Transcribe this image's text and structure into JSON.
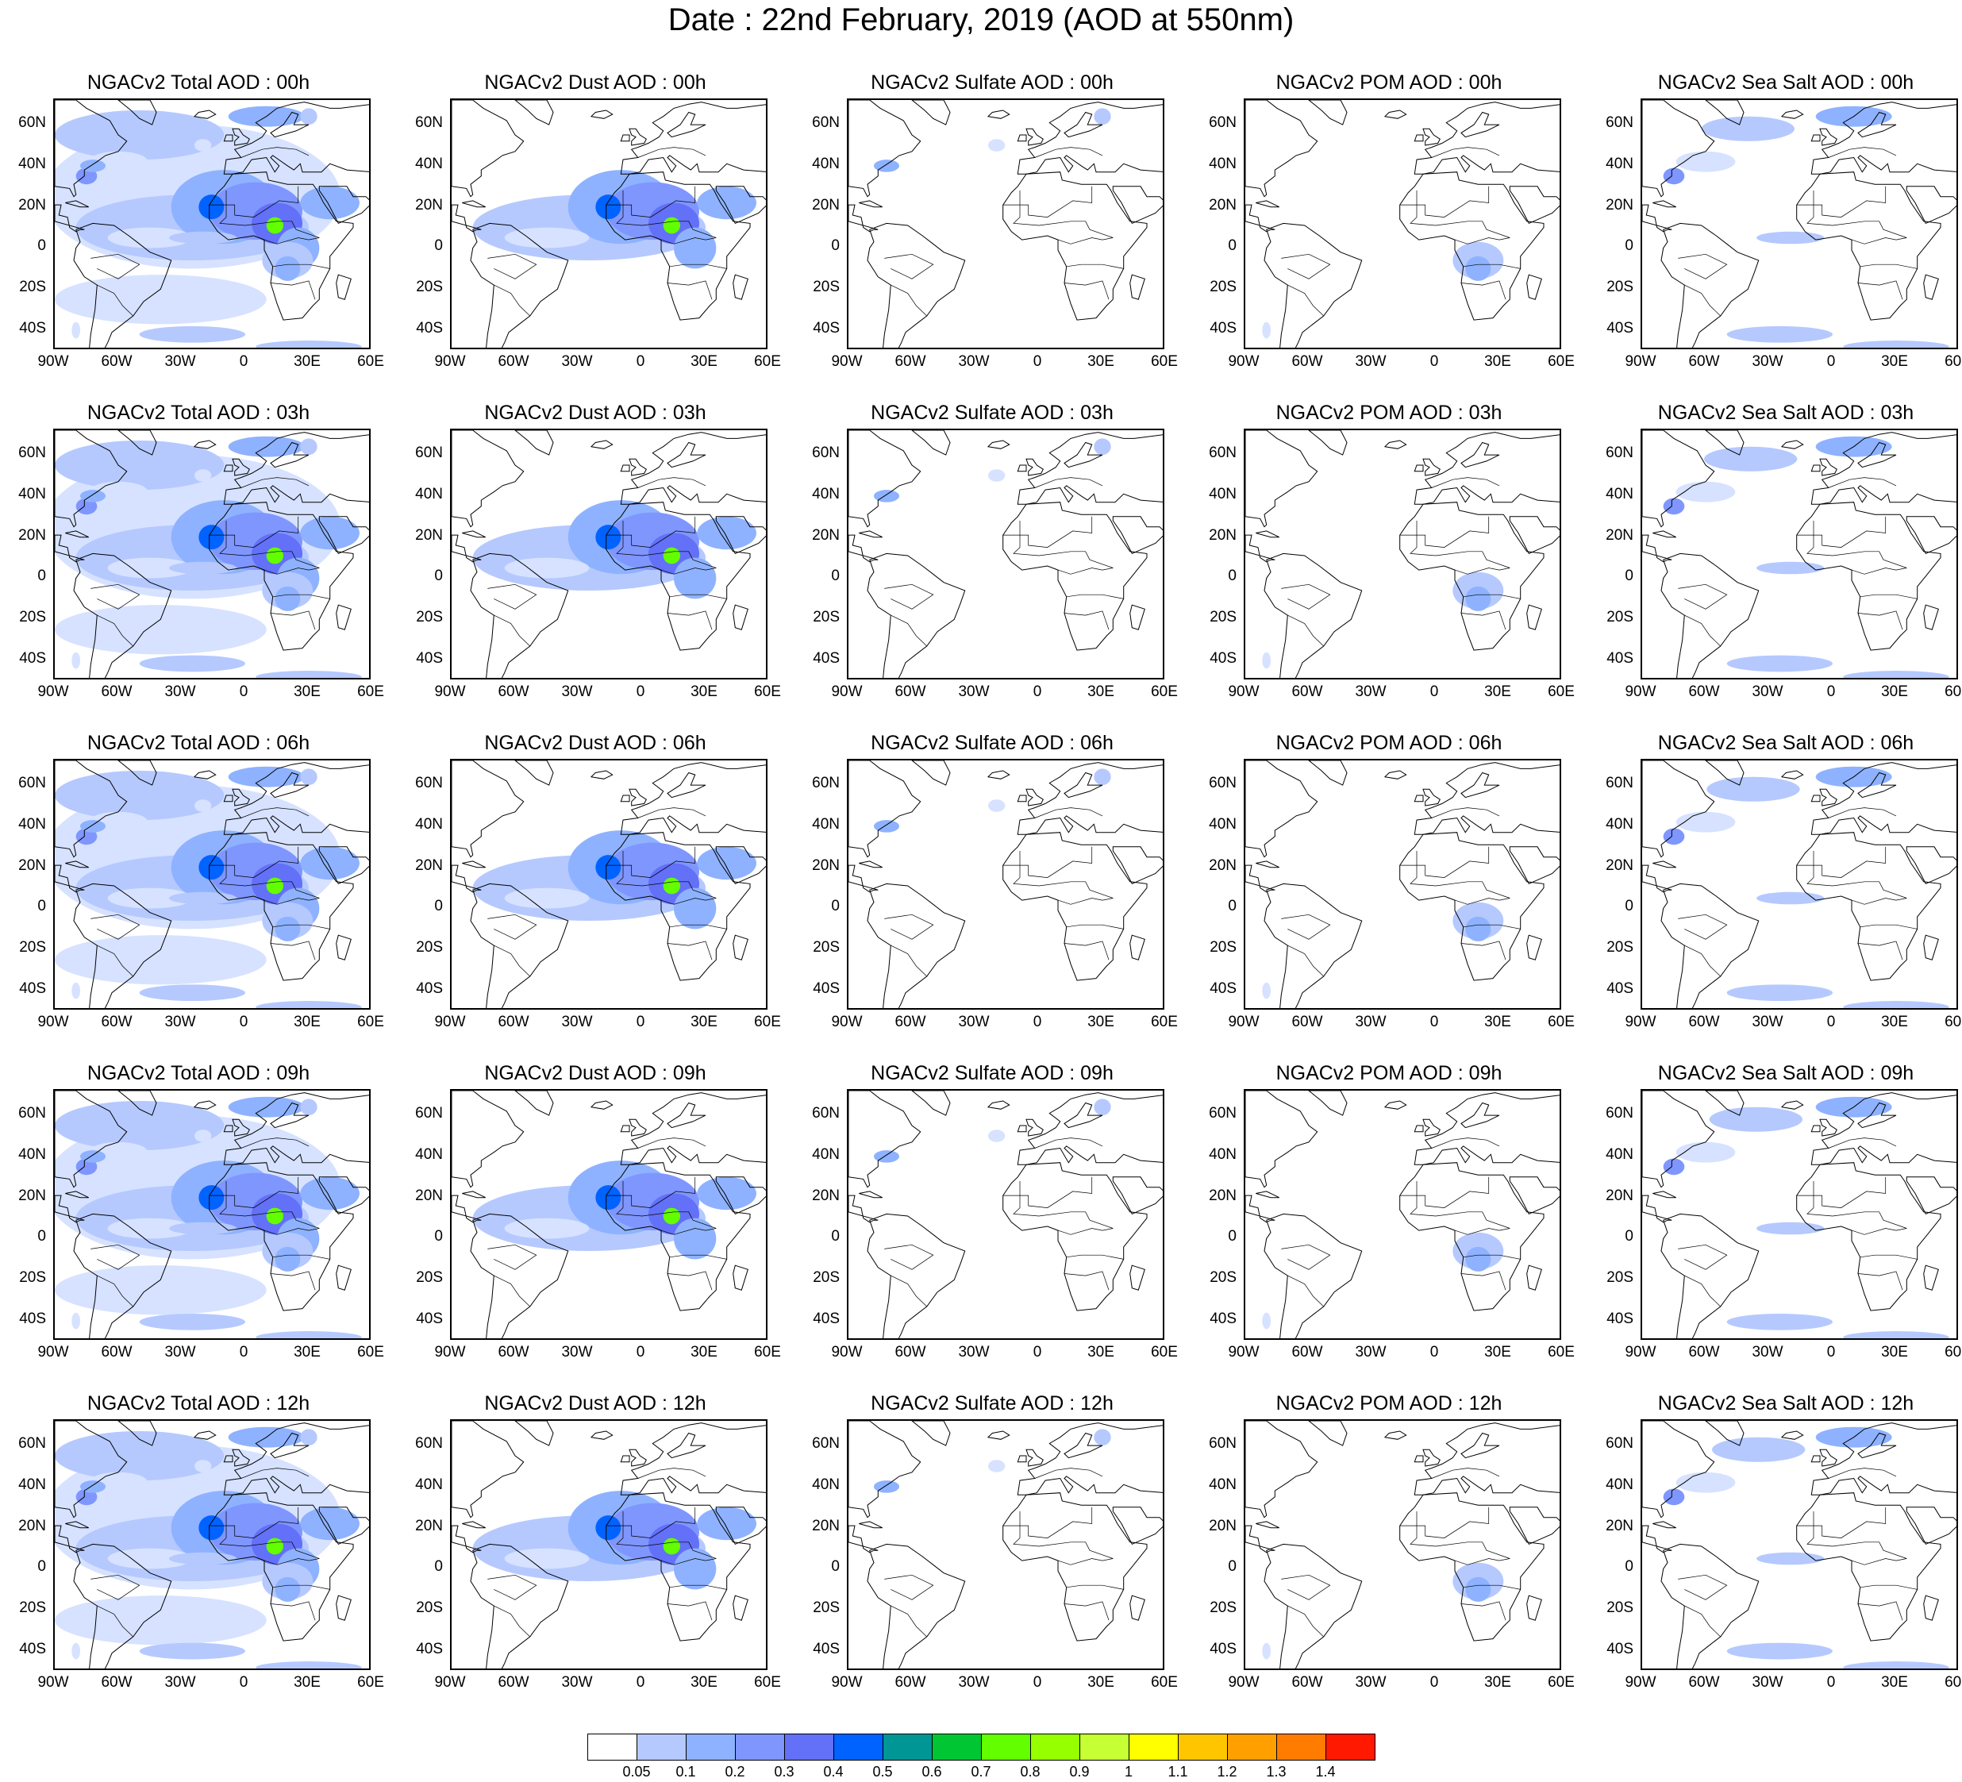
{
  "figure": {
    "title": "Date : 22nd February, 2019 (AOD at 550nm)",
    "lat_ticks": [
      "60N",
      "40N",
      "20N",
      "0",
      "20S",
      "40S"
    ],
    "lon_ticks": [
      "90W",
      "60W",
      "30W",
      "0",
      "30E",
      "60E"
    ],
    "map_extent": {
      "lon": [
        -90,
        60
      ],
      "lat": [
        -50,
        72
      ]
    },
    "land_outline_color": "#000000"
  },
  "panels": [
    {
      "title": "NGACv2 Total AOD : 00h",
      "species": "total",
      "hour": 0
    },
    {
      "title": "NGACv2 Dust AOD : 00h",
      "species": "dust",
      "hour": 0
    },
    {
      "title": "NGACv2 Sulfate AOD : 00h",
      "species": "sulfate",
      "hour": 0
    },
    {
      "title": "NGACv2 POM AOD : 00h",
      "species": "pom",
      "hour": 0
    },
    {
      "title": "NGACv2 Sea Salt AOD : 00h",
      "species": "seasalt",
      "hour": 0
    },
    {
      "title": "NGACv2 Total AOD : 03h",
      "species": "total",
      "hour": 3
    },
    {
      "title": "NGACv2 Dust AOD : 03h",
      "species": "dust",
      "hour": 3
    },
    {
      "title": "NGACv2 Sulfate AOD : 03h",
      "species": "sulfate",
      "hour": 3
    },
    {
      "title": "NGACv2 POM AOD : 03h",
      "species": "pom",
      "hour": 3
    },
    {
      "title": "NGACv2 Sea Salt AOD : 03h",
      "species": "seasalt",
      "hour": 3
    },
    {
      "title": "NGACv2 Total AOD : 06h",
      "species": "total",
      "hour": 6
    },
    {
      "title": "NGACv2 Dust AOD : 06h",
      "species": "dust",
      "hour": 6
    },
    {
      "title": "NGACv2 Sulfate AOD : 06h",
      "species": "sulfate",
      "hour": 6
    },
    {
      "title": "NGACv2 POM AOD : 06h",
      "species": "pom",
      "hour": 6
    },
    {
      "title": "NGACv2 Sea Salt AOD : 06h",
      "species": "seasalt",
      "hour": 6
    },
    {
      "title": "NGACv2 Total AOD : 09h",
      "species": "total",
      "hour": 9
    },
    {
      "title": "NGACv2 Dust AOD : 09h",
      "species": "dust",
      "hour": 9
    },
    {
      "title": "NGACv2 Sulfate AOD : 09h",
      "species": "sulfate",
      "hour": 9
    },
    {
      "title": "NGACv2 POM AOD : 09h",
      "species": "pom",
      "hour": 9
    },
    {
      "title": "NGACv2 Sea Salt  AOD : 09h",
      "species": "seasalt",
      "hour": 9
    },
    {
      "title": "NGACv2 Total AOD  : 12h",
      "species": "total",
      "hour": 12
    },
    {
      "title": "NGACv2 Dust AOD : 12h",
      "species": "dust",
      "hour": 12
    },
    {
      "title": "NGACv2 Sulfate AOD : 12h",
      "species": "sulfate",
      "hour": 12
    },
    {
      "title": "NGACv2 POM  AOD : 12h",
      "species": "pom",
      "hour": 12
    },
    {
      "title": "NGACv2 Sea Salt  AOD : 12h",
      "species": "seasalt",
      "hour": 12
    }
  ],
  "colorbar": {
    "colors": [
      "#ffffff",
      "#d6e2ff",
      "#b5c9ff",
      "#8eb2ff",
      "#7f96ff",
      "#6370f8",
      "#0063ff",
      "#009696",
      "#00c633",
      "#63ff00",
      "#96ff00",
      "#c6ff33",
      "#ffff00",
      "#ffc600",
      "#ffa000",
      "#ff7c00",
      "#ff1900"
    ],
    "labels": [
      "0.05",
      "0.1",
      "0.2",
      "0.3",
      "0.4",
      "0.5",
      "0.6",
      "0.7",
      "0.8",
      "0.9",
      "1",
      "1.1",
      "1.2",
      "1.3",
      "1.4"
    ]
  }
}
